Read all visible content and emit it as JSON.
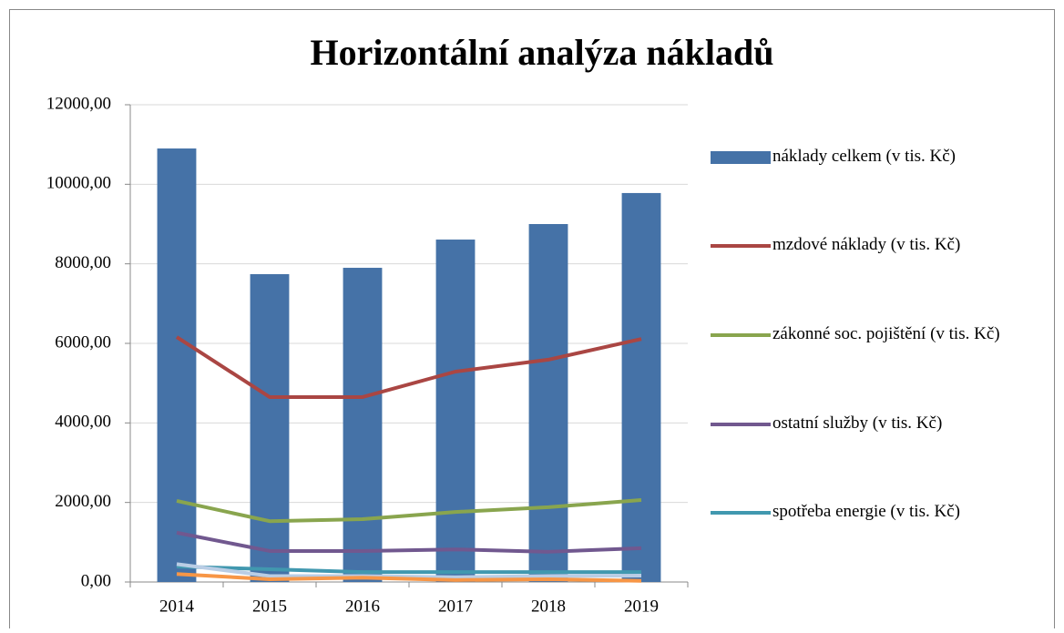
{
  "chart_data": {
    "type": "bar",
    "title": "Horizontální analýza nákladů",
    "categories": [
      "2014",
      "2015",
      "2016",
      "2017",
      "2018",
      "2019"
    ],
    "ylim": [
      0,
      12000
    ],
    "yticks": [
      {
        "value": 0,
        "label": "0,00"
      },
      {
        "value": 2000,
        "label": "2000,00"
      },
      {
        "value": 4000,
        "label": "4000,00"
      },
      {
        "value": 6000,
        "label": "6000,00"
      },
      {
        "value": 8000,
        "label": "8000,00"
      },
      {
        "value": 10000,
        "label": "10000,00"
      },
      {
        "value": 12000,
        "label": "12000,00"
      }
    ],
    "grid": true,
    "legend": "right",
    "series": [
      {
        "name": "náklady celkem (v tis. Kč)",
        "type": "bar",
        "color": "#4572a7",
        "values": [
          10900,
          7740,
          7900,
          8610,
          9000,
          9780
        ]
      },
      {
        "name": "mzdové náklady (v tis. Kč)",
        "type": "line",
        "color": "#aa4643",
        "values": [
          6160,
          4650,
          4650,
          5290,
          5590,
          6110
        ]
      },
      {
        "name": "zákonné soc. pojištění (v tis. Kč)",
        "type": "line",
        "color": "#89a54e",
        "values": [
          2040,
          1530,
          1580,
          1760,
          1880,
          2060
        ]
      },
      {
        "name": "ostatní služby (v tis. Kč)",
        "type": "line",
        "color": "#71588f",
        "values": [
          1240,
          780,
          780,
          820,
          760,
          850
        ]
      },
      {
        "name": "spotřeba energie (v tis. Kč)",
        "type": "line",
        "color": "#4198af",
        "values": [
          390,
          320,
          250,
          250,
          250,
          250
        ]
      },
      {
        "type": "line",
        "color": "#b9cde5",
        "values": [
          450,
          150,
          150,
          120,
          150,
          160
        ]
      },
      {
        "type": "line",
        "color": "#f79646",
        "values": [
          200,
          70,
          110,
          50,
          70,
          30
        ]
      }
    ]
  }
}
